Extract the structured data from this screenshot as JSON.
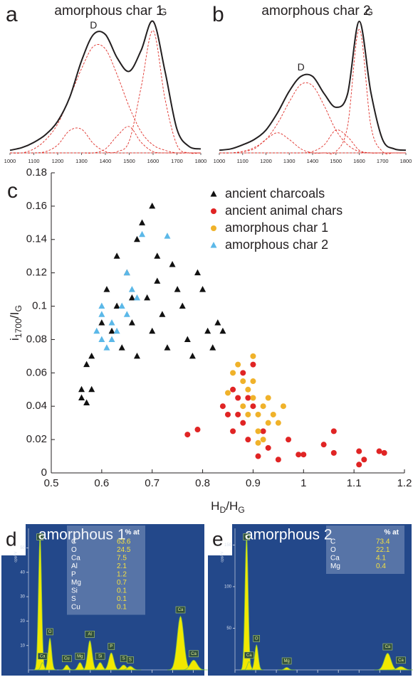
{
  "chart_data": [
    {
      "type": "spectrum",
      "panel": "a",
      "title": "amorphous char 1",
      "annotations": [
        "D",
        "G"
      ],
      "x": [
        1000,
        1050,
        1100,
        1150,
        1200,
        1250,
        1300,
        1350,
        1400,
        1450,
        1500,
        1550,
        1600,
        1650,
        1700,
        1750,
        1800
      ],
      "xlim": [
        1000,
        1800
      ],
      "xticks": [
        1000,
        1100,
        1200,
        1300,
        1400,
        1500,
        1600,
        1700,
        1800
      ],
      "series": [
        {
          "color": "#231f20",
          "values": [
            0.02,
            0.04,
            0.08,
            0.14,
            0.24,
            0.42,
            0.7,
            0.9,
            0.9,
            0.72,
            0.62,
            0.78,
            1.0,
            0.62,
            0.18,
            0.05,
            0.03
          ]
        },
        {
          "color": "#e0302a",
          "dashed": true,
          "values": [
            0,
            0,
            0.03,
            0.1,
            0.22,
            0.42,
            0.64,
            0.81,
            0.79,
            0.59,
            0.35,
            0.16,
            0.06,
            0.02,
            0,
            0,
            0
          ]
        },
        {
          "color": "#e0302a",
          "dashed": true,
          "values": [
            0,
            0,
            0,
            0,
            0,
            0,
            0,
            0,
            0,
            0.01,
            0.09,
            0.5,
            0.93,
            0.41,
            0.06,
            0,
            0
          ]
        },
        {
          "color": "#e0302a",
          "dashed": true,
          "values": [
            0,
            0,
            0,
            0.01,
            0.06,
            0.17,
            0.18,
            0.07,
            0.01,
            0,
            0,
            0,
            0,
            0,
            0,
            0,
            0
          ]
        },
        {
          "color": "#e0302a",
          "dashed": true,
          "values": [
            0,
            0,
            0,
            0,
            0,
            0,
            0,
            0,
            0.03,
            0.13,
            0.2,
            0.08,
            0.01,
            0,
            0,
            0,
            0
          ]
        }
      ]
    },
    {
      "type": "spectrum",
      "panel": "b",
      "title": "amorphous char 2",
      "annotations": [
        "D",
        "G"
      ],
      "x": [
        1000,
        1050,
        1100,
        1150,
        1200,
        1250,
        1300,
        1350,
        1400,
        1450,
        1500,
        1550,
        1600,
        1650,
        1700,
        1750,
        1800
      ],
      "xlim": [
        1000,
        1800
      ],
      "xticks": [
        1000,
        1100,
        1200,
        1300,
        1400,
        1500,
        1600,
        1700,
        1800
      ],
      "series": [
        {
          "color": "#231f20",
          "values": [
            0.02,
            0.03,
            0.06,
            0.1,
            0.17,
            0.3,
            0.46,
            0.57,
            0.57,
            0.44,
            0.34,
            0.44,
            0.98,
            0.45,
            0.1,
            0.03,
            0.02
          ]
        },
        {
          "color": "#e0302a",
          "dashed": true,
          "values": [
            0,
            0,
            0.01,
            0.04,
            0.1,
            0.22,
            0.38,
            0.51,
            0.5,
            0.35,
            0.17,
            0.06,
            0.01,
            0,
            0,
            0,
            0
          ]
        },
        {
          "color": "#e0302a",
          "dashed": true,
          "values": [
            0,
            0,
            0,
            0,
            0,
            0,
            0,
            0,
            0,
            0,
            0.01,
            0.2,
            0.92,
            0.2,
            0.01,
            0,
            0
          ]
        },
        {
          "color": "#e0302a",
          "dashed": true,
          "values": [
            0,
            0,
            0.01,
            0.03,
            0.1,
            0.15,
            0.1,
            0.03,
            0,
            0,
            0,
            0,
            0,
            0,
            0,
            0,
            0
          ]
        },
        {
          "color": "#e0302a",
          "dashed": true,
          "values": [
            0,
            0,
            0,
            0,
            0,
            0,
            0,
            0,
            0.01,
            0.06,
            0.17,
            0.12,
            0.02,
            0,
            0,
            0,
            0
          ]
        }
      ]
    },
    {
      "type": "scatter",
      "panel": "c",
      "xlabel": [
        {
          "text": "H"
        },
        {
          "text": "D",
          "sub": true
        },
        {
          "text": "/H"
        },
        {
          "text": "G",
          "sub": true
        }
      ],
      "ylabel": [
        {
          "text": "i"
        },
        {
          "text": "1700",
          "sub": true
        },
        {
          "text": "/I"
        },
        {
          "text": "G",
          "sub": true
        }
      ],
      "xlim": [
        0.5,
        1.2
      ],
      "xticks": [
        0.5,
        0.6,
        0.7,
        0.8,
        0.9,
        1,
        1.1,
        1.2
      ],
      "ylim": [
        0,
        0.18
      ],
      "yticks": [
        0,
        0.02,
        0.04,
        0.06,
        0.08,
        0.1,
        0.12,
        0.14,
        0.16,
        0.18
      ],
      "series": [
        {
          "name": "ancient charcoals",
          "marker": "triangle",
          "color": "#111111",
          "x": [
            0.56,
            0.56,
            0.57,
            0.58,
            0.57,
            0.58,
            0.6,
            0.61,
            0.62,
            0.63,
            0.63,
            0.64,
            0.65,
            0.66,
            0.67,
            0.67,
            0.68,
            0.69,
            0.7,
            0.7,
            0.71,
            0.72,
            0.73,
            0.75,
            0.76,
            0.77,
            0.78,
            0.79,
            0.8,
            0.81,
            0.82,
            0.83,
            0.84,
            0.71,
            0.66,
            0.74
          ],
          "values": [
            0.045,
            0.05,
            0.042,
            0.05,
            0.065,
            0.07,
            0.09,
            0.11,
            0.085,
            0.1,
            0.13,
            0.075,
            0.12,
            0.09,
            0.14,
            0.07,
            0.15,
            0.105,
            0.16,
            0.085,
            0.13,
            0.095,
            0.075,
            0.11,
            0.1,
            0.08,
            0.07,
            0.12,
            0.11,
            0.085,
            0.075,
            0.09,
            0.085,
            0.115,
            0.105,
            0.125
          ]
        },
        {
          "name": "ancient animal chars",
          "marker": "circle",
          "color": "#e02424",
          "x": [
            0.77,
            0.79,
            0.84,
            0.85,
            0.86,
            0.86,
            0.87,
            0.88,
            0.88,
            0.89,
            0.9,
            0.9,
            0.91,
            0.92,
            0.93,
            0.95,
            0.97,
            0.99,
            1.0,
            1.04,
            1.06,
            1.06,
            1.11,
            1.11,
            1.12,
            1.15,
            1.16,
            0.87,
            0.89
          ],
          "values": [
            0.023,
            0.026,
            0.04,
            0.035,
            0.05,
            0.025,
            0.045,
            0.03,
            0.06,
            0.02,
            0.065,
            0.04,
            0.01,
            0.025,
            0.015,
            0.008,
            0.02,
            0.011,
            0.011,
            0.017,
            0.025,
            0.012,
            0.013,
            0.005,
            0.008,
            0.013,
            0.012,
            0.035,
            0.045
          ]
        },
        {
          "name": "amorphous char 1",
          "marker": "circle",
          "color": "#f0b22a",
          "x": [
            0.85,
            0.86,
            0.87,
            0.88,
            0.89,
            0.9,
            0.9,
            0.91,
            0.91,
            0.92,
            0.92,
            0.93,
            0.93,
            0.94,
            0.95,
            0.96,
            0.89,
            0.88,
            0.9,
            0.91
          ],
          "values": [
            0.048,
            0.06,
            0.065,
            0.055,
            0.05,
            0.07,
            0.045,
            0.035,
            0.025,
            0.04,
            0.02,
            0.03,
            0.045,
            0.035,
            0.03,
            0.04,
            0.035,
            0.04,
            0.055,
            0.018
          ]
        },
        {
          "name": "amorphous char 2",
          "marker": "triangle",
          "color": "#5bb8e8",
          "x": [
            0.59,
            0.6,
            0.6,
            0.61,
            0.62,
            0.62,
            0.63,
            0.64,
            0.65,
            0.65,
            0.66,
            0.68,
            0.73,
            0.67,
            0.6
          ],
          "values": [
            0.085,
            0.08,
            0.095,
            0.075,
            0.09,
            0.08,
            0.085,
            0.1,
            0.095,
            0.12,
            0.11,
            0.143,
            0.142,
            0.105,
            0.1
          ]
        }
      ]
    },
    {
      "type": "eds",
      "panel": "d",
      "title": "amorphous 1",
      "ylabel": "cps/eV",
      "xlim": [
        0,
        4.2
      ],
      "xticks": [
        0,
        0.5,
        1,
        1.5,
        2,
        2.5,
        3,
        3.5,
        4
      ],
      "ylim": [
        0,
        58
      ],
      "yticks": [
        10,
        20,
        30,
        40,
        50
      ],
      "peaks": [
        {
          "label": "C",
          "x": 0.28,
          "value": 55
        },
        {
          "label": "Ca",
          "x": 0.34,
          "value": 3
        },
        {
          "label": "O",
          "x": 0.52,
          "value": 13
        },
        {
          "label": "Cu",
          "x": 0.93,
          "value": 2
        },
        {
          "label": "Mg",
          "x": 1.25,
          "value": 3
        },
        {
          "label": "Al",
          "x": 1.49,
          "value": 12
        },
        {
          "label": "Si",
          "x": 1.74,
          "value": 3
        },
        {
          "label": "P",
          "x": 2.01,
          "value": 7
        },
        {
          "label": "S",
          "x": 2.31,
          "value": 2
        },
        {
          "label": "S",
          "x": 2.47,
          "value": 1.5
        },
        {
          "label": "Ca",
          "x": 3.69,
          "value": 22
        },
        {
          "label": "Ca",
          "x": 4.01,
          "value": 4
        }
      ],
      "table": {
        "header": "% at",
        "rows": [
          [
            "C",
            63.6
          ],
          [
            "O",
            24.5
          ],
          [
            "Ca",
            7.5
          ],
          [
            "Al",
            2.1
          ],
          [
            "P",
            1.2
          ],
          [
            "Mg",
            0.7
          ],
          [
            "Si",
            0.1
          ],
          [
            "S",
            0.1
          ],
          [
            "Cu",
            0.1
          ]
        ]
      }
    },
    {
      "type": "eds",
      "panel": "e",
      "title": "amorphous 2",
      "ylabel": "cps/eV",
      "xlim": [
        0,
        4.2
      ],
      "xticks": [
        0,
        0.5,
        1,
        1.5,
        2,
        2.5,
        3,
        3.5,
        4
      ],
      "ylim": [
        0,
        170
      ],
      "yticks": [
        50,
        100,
        150
      ],
      "peaks": [
        {
          "label": "C",
          "x": 0.28,
          "value": 160
        },
        {
          "label": "Ca",
          "x": 0.34,
          "value": 10
        },
        {
          "label": "O",
          "x": 0.52,
          "value": 30
        },
        {
          "label": "Mg",
          "x": 1.25,
          "value": 3
        },
        {
          "label": "Ca",
          "x": 3.69,
          "value": 20
        },
        {
          "label": "Ca",
          "x": 4.01,
          "value": 4
        }
      ],
      "table": {
        "header": "% at",
        "rows": [
          [
            "C",
            73.4
          ],
          [
            "O",
            22.1
          ],
          [
            "Ca",
            4.1
          ],
          [
            "Mg",
            0.4
          ]
        ]
      }
    }
  ]
}
